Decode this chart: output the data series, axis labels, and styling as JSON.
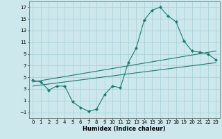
{
  "xlabel": "Humidex (Indice chaleur)",
  "bg_color": "#cce8ec",
  "line_color": "#1a7a6e",
  "xlim": [
    -0.5,
    23.5
  ],
  "ylim": [
    -2,
    18
  ],
  "xticks": [
    0,
    1,
    2,
    3,
    4,
    5,
    6,
    7,
    8,
    9,
    10,
    11,
    12,
    13,
    14,
    15,
    16,
    17,
    18,
    19,
    20,
    21,
    22,
    23
  ],
  "yticks": [
    -1,
    1,
    3,
    5,
    7,
    9,
    11,
    13,
    15,
    17
  ],
  "line1_x": [
    0,
    1,
    2,
    3,
    4,
    5,
    6,
    7,
    8,
    9,
    10,
    11,
    12,
    13,
    14,
    15,
    16,
    17,
    18,
    19,
    20,
    21,
    22,
    23
  ],
  "line1_y": [
    4.5,
    4.2,
    2.8,
    3.5,
    3.5,
    0.8,
    -0.2,
    -0.8,
    -0.5,
    2.0,
    3.5,
    3.2,
    7.5,
    10.0,
    14.8,
    16.5,
    17.0,
    15.5,
    14.5,
    11.2,
    9.5,
    9.3,
    9.0,
    8.0
  ],
  "line2_x": [
    0,
    23
  ],
  "line2_y": [
    4.2,
    9.5
  ],
  "line3_x": [
    0,
    23
  ],
  "line3_y": [
    3.5,
    7.5
  ],
  "grid_color": "#aad4d8",
  "markersize": 2.2
}
